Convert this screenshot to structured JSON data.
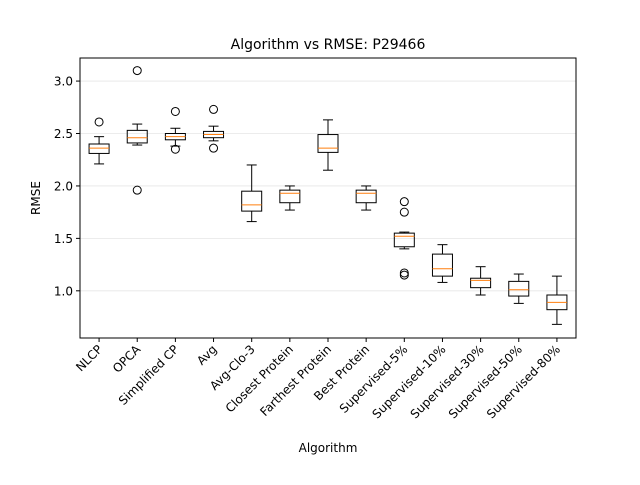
{
  "chart_data": {
    "type": "box",
    "title": "Algorithm vs RMSE: P29466",
    "xlabel": "Algorithm",
    "ylabel": "RMSE",
    "ylim": [
      0.55,
      3.22
    ],
    "yticks": [
      "1.0",
      "1.5",
      "2.0",
      "2.5",
      "3.0"
    ],
    "ytick_values": [
      1.0,
      1.5,
      2.0,
      2.5,
      3.0
    ],
    "grid": "horizontal",
    "colors": {
      "box": "#000000",
      "median": "#ff7f0e",
      "grid": "#e6e6e6",
      "outlier": "#000000"
    },
    "categories": [
      "NLCP",
      "OPCA",
      "Simplified CP",
      "Avg",
      "Avg-Clo-3",
      "Closest Protein",
      "Farthest Protein",
      "Best Protein",
      "Supervised-5%",
      "Supervised-10%",
      "Supervised-30%",
      "Supervised-50%",
      "Supervised-80%"
    ],
    "boxes": [
      {
        "whislo": 2.21,
        "q1": 2.31,
        "med": 2.36,
        "q3": 2.4,
        "whishi": 2.47,
        "fliers": [
          2.61
        ]
      },
      {
        "whislo": 2.39,
        "q1": 2.41,
        "med": 2.46,
        "q3": 2.53,
        "whishi": 2.59,
        "fliers": [
          3.1,
          1.96
        ]
      },
      {
        "whislo": 2.38,
        "q1": 2.44,
        "med": 2.47,
        "q3": 2.5,
        "whishi": 2.55,
        "fliers": [
          2.71,
          2.35
        ]
      },
      {
        "whislo": 2.43,
        "q1": 2.46,
        "med": 2.49,
        "q3": 2.52,
        "whishi": 2.57,
        "fliers": [
          2.73,
          2.36
        ]
      },
      {
        "whislo": 1.66,
        "q1": 1.76,
        "med": 1.82,
        "q3": 1.95,
        "whishi": 2.2,
        "fliers": []
      },
      {
        "whislo": 1.77,
        "q1": 1.84,
        "med": 1.93,
        "q3": 1.96,
        "whishi": 2.0,
        "fliers": []
      },
      {
        "whislo": 2.15,
        "q1": 2.32,
        "med": 2.36,
        "q3": 2.49,
        "whishi": 2.63,
        "fliers": []
      },
      {
        "whislo": 1.77,
        "q1": 1.84,
        "med": 1.93,
        "q3": 1.96,
        "whishi": 2.0,
        "fliers": []
      },
      {
        "whislo": 1.4,
        "q1": 1.42,
        "med": 1.52,
        "q3": 1.55,
        "whishi": 1.56,
        "fliers": [
          1.85,
          1.75,
          1.17,
          1.15
        ]
      },
      {
        "whislo": 1.08,
        "q1": 1.14,
        "med": 1.21,
        "q3": 1.35,
        "whishi": 1.44,
        "fliers": []
      },
      {
        "whislo": 0.96,
        "q1": 1.03,
        "med": 1.1,
        "q3": 1.12,
        "whishi": 1.23,
        "fliers": []
      },
      {
        "whislo": 0.88,
        "q1": 0.95,
        "med": 1.01,
        "q3": 1.09,
        "whishi": 1.16,
        "fliers": []
      },
      {
        "whislo": 0.68,
        "q1": 0.82,
        "med": 0.89,
        "q3": 0.96,
        "whishi": 1.14,
        "fliers": []
      }
    ]
  }
}
